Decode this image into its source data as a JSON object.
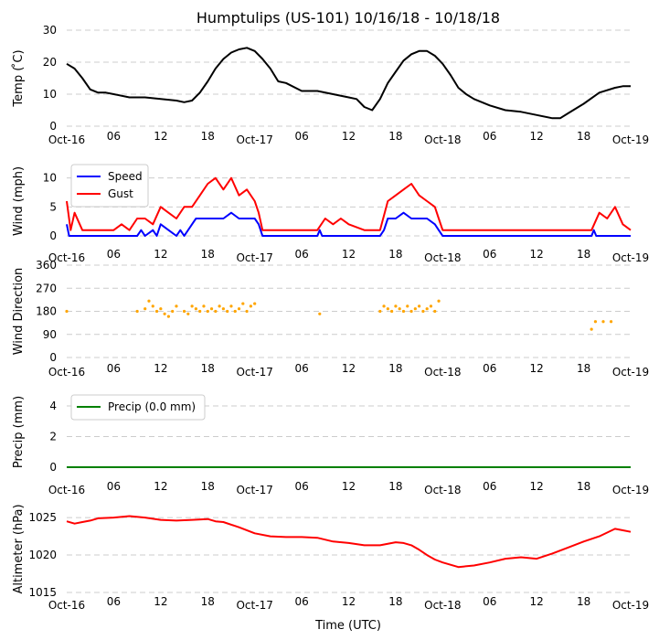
{
  "title": "Humptulips (US-101) 10/16/18 - 10/18/18",
  "xlabel": "Time (UTC)",
  "x_ticks": [
    "Oct-16",
    "06",
    "12",
    "18",
    "Oct-17",
    "06",
    "12",
    "18",
    "Oct-18",
    "06",
    "12",
    "18",
    "Oct-19"
  ],
  "x_range_hours": [
    0,
    72
  ],
  "colors": {
    "temp": "#000000",
    "speed": "#0000ff",
    "gust": "#ff0000",
    "direction": "#ffa500",
    "precip": "#008000",
    "altimeter": "#ff0000",
    "grid": "#cccccc"
  },
  "chart_data": [
    {
      "type": "line",
      "name": "temperature",
      "ylabel": "Temp ( ̊C)",
      "ylim": [
        0,
        30
      ],
      "yticks": [
        0,
        10,
        20,
        30
      ],
      "grid": true,
      "series": [
        {
          "name": "Temp",
          "color": "#000000",
          "x": [
            0,
            1,
            2,
            3,
            4,
            5,
            6,
            8,
            10,
            12,
            14,
            15,
            16,
            17,
            18,
            19,
            20,
            21,
            22,
            23,
            24,
            25,
            26,
            27,
            28,
            30,
            32,
            34,
            36,
            37,
            38,
            39,
            40,
            41,
            42,
            43,
            44,
            45,
            46,
            47,
            48,
            49,
            50,
            51,
            52,
            53,
            54,
            56,
            58,
            60,
            62,
            63,
            64,
            66,
            68,
            70,
            71,
            72
          ],
          "values": [
            19.5,
            18,
            15,
            11.5,
            10.5,
            10.5,
            10,
            9,
            9,
            8.5,
            8,
            7.5,
            8,
            10.5,
            14,
            18,
            21,
            23,
            24,
            24.5,
            23.5,
            21,
            18,
            14,
            13.5,
            11,
            11,
            10,
            9,
            8.5,
            6,
            5,
            8.5,
            13.5,
            17,
            20.5,
            22.5,
            23.5,
            23.5,
            22,
            19.5,
            16,
            12,
            10,
            8.5,
            7.5,
            6.5,
            5,
            4.5,
            3.5,
            2.5,
            2.5,
            4,
            7,
            10.5,
            12,
            12.5,
            12.5
          ]
        }
      ]
    },
    {
      "type": "line",
      "name": "wind",
      "ylabel": "Wind (mph)",
      "ylim": [
        0,
        12
      ],
      "yticks": [
        0,
        5,
        10
      ],
      "grid": true,
      "legend": "top-left",
      "series": [
        {
          "name": "Speed",
          "color": "#0000ff",
          "x": [
            0,
            0.3,
            1,
            9,
            9.5,
            10,
            11,
            11.5,
            12,
            13,
            14,
            14.5,
            15,
            15.5,
            16,
            16.5,
            17,
            18,
            19,
            20,
            21,
            22,
            23,
            24,
            24.5,
            25,
            32,
            32.3,
            32.6,
            40,
            40.5,
            41,
            42,
            43,
            44,
            45,
            46,
            47,
            47.5,
            48,
            67,
            67.3,
            67.6,
            72
          ],
          "values": [
            2,
            0,
            0,
            0,
            1,
            0,
            1,
            0,
            2,
            1,
            0,
            1,
            0,
            1,
            2,
            3,
            3,
            3,
            3,
            3,
            4,
            3,
            3,
            3,
            2,
            0,
            0,
            1,
            0,
            0,
            1,
            3,
            3,
            4,
            3,
            3,
            3,
            2,
            1,
            0,
            0,
            1,
            0,
            0
          ]
        },
        {
          "name": "Gust",
          "color": "#ff0000",
          "x": [
            0,
            0.5,
            1,
            2,
            3,
            4,
            5,
            6,
            7,
            8,
            9,
            10,
            11,
            12,
            13,
            14,
            15,
            16,
            17,
            18,
            19,
            20,
            21,
            22,
            23,
            24,
            24.5,
            25,
            32,
            33,
            34,
            35,
            36,
            38,
            39,
            40,
            41,
            42,
            43,
            44,
            45,
            46,
            47,
            47.5,
            48,
            67,
            68,
            69,
            70,
            71,
            72
          ],
          "values": [
            6,
            1,
            4,
            1,
            1,
            1,
            1,
            1,
            2,
            1,
            3,
            3,
            2,
            5,
            4,
            3,
            5,
            5,
            7,
            9,
            10,
            8,
            10,
            7,
            8,
            6,
            4,
            1,
            1,
            3,
            2,
            3,
            2,
            1,
            1,
            1,
            6,
            7,
            8,
            9,
            7,
            6,
            5,
            3,
            1,
            1,
            4,
            3,
            5,
            2,
            1
          ]
        }
      ]
    },
    {
      "type": "scatter",
      "name": "wind_direction",
      "ylabel": "Wind Direction",
      "ylim": [
        0,
        360
      ],
      "yticks": [
        0,
        90,
        180,
        270,
        360
      ],
      "grid": true,
      "series": [
        {
          "name": "Direction",
          "color": "#ffa500",
          "x": [
            0,
            9,
            10,
            10.5,
            11,
            11.5,
            12,
            12.5,
            13,
            13.5,
            14,
            15,
            15.5,
            16,
            16.5,
            17,
            17.5,
            18,
            18.5,
            19,
            19.5,
            20,
            20.5,
            21,
            21.5,
            22,
            22.5,
            23,
            23.5,
            24,
            32.3,
            40,
            40.5,
            41,
            41.5,
            42,
            42.5,
            43,
            43.5,
            44,
            44.5,
            45,
            45.5,
            46,
            46.5,
            47,
            47.5,
            67,
            67.5,
            68.5,
            69.5
          ],
          "values": [
            180,
            180,
            190,
            220,
            200,
            180,
            190,
            170,
            160,
            180,
            200,
            180,
            170,
            200,
            190,
            180,
            200,
            180,
            190,
            180,
            200,
            190,
            180,
            200,
            180,
            190,
            210,
            180,
            200,
            210,
            170,
            180,
            200,
            190,
            180,
            200,
            190,
            180,
            200,
            180,
            190,
            200,
            180,
            190,
            200,
            180,
            220,
            110,
            140,
            140,
            140
          ]
        }
      ]
    },
    {
      "type": "line",
      "name": "precip",
      "ylabel": "Precip (mm)",
      "ylim": [
        0,
        4.6
      ],
      "yticks": [
        0,
        2,
        4
      ],
      "grid": true,
      "legend": "top-left",
      "series": [
        {
          "name": "Precip (0.0 mm)",
          "color": "#008000",
          "x": [
            0,
            72
          ],
          "values": [
            0,
            0
          ]
        }
      ]
    },
    {
      "type": "line",
      "name": "altimeter",
      "ylabel": "Altimeter (hPa)",
      "ylim": [
        1015,
        1026.6
      ],
      "yticks": [
        1015,
        1020,
        1025
      ],
      "grid": true,
      "series": [
        {
          "name": "Altimeter",
          "color": "#ff0000",
          "x": [
            0,
            1,
            2,
            3,
            4,
            6,
            8,
            10,
            12,
            14,
            16,
            18,
            19,
            20,
            22,
            24,
            26,
            28,
            30,
            32,
            34,
            36,
            38,
            40,
            42,
            43,
            44,
            45,
            46,
            47,
            48,
            49,
            50,
            52,
            54,
            56,
            58,
            60,
            62,
            64,
            66,
            68,
            70,
            71,
            72
          ],
          "values": [
            1024.5,
            1024.2,
            1024.4,
            1024.6,
            1024.9,
            1025,
            1025.2,
            1025,
            1024.7,
            1024.6,
            1024.7,
            1024.8,
            1024.5,
            1024.4,
            1023.7,
            1022.9,
            1022.5,
            1022.4,
            1022.4,
            1022.3,
            1021.8,
            1021.6,
            1021.3,
            1021.3,
            1021.7,
            1021.6,
            1021.3,
            1020.7,
            1020,
            1019.4,
            1019,
            1018.7,
            1018.4,
            1018.6,
            1019,
            1019.5,
            1019.7,
            1019.5,
            1020.2,
            1021,
            1021.8,
            1022.5,
            1023.5,
            1023.3,
            1023.1
          ]
        }
      ]
    }
  ]
}
